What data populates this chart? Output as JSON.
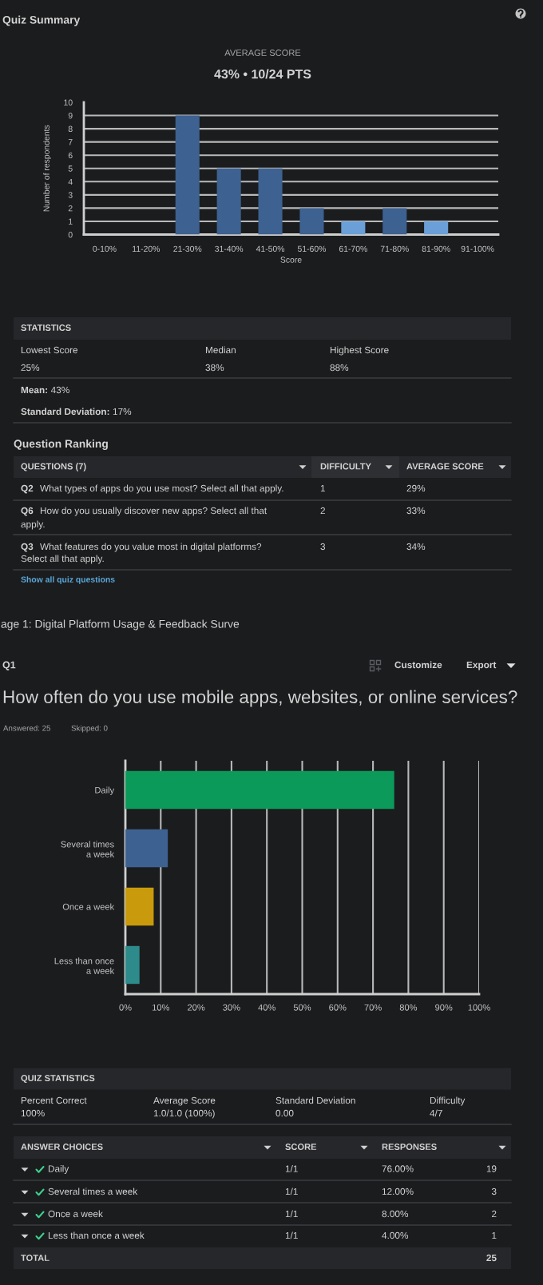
{
  "chart_data": [
    {
      "type": "bar",
      "title": "Quiz Summary",
      "subtitle": "AVERAGE SCORE",
      "annotations": [
        "43% • 10/24 PTS"
      ],
      "categories": [
        "0-10%",
        "11-20%",
        "21-30%",
        "31-40%",
        "41-50%",
        "51-60%",
        "61-70%",
        "71-80%",
        "81-90%",
        "91-100%"
      ],
      "values": [
        0,
        0,
        9,
        5,
        5,
        2,
        1,
        2,
        1,
        0
      ],
      "colors": [
        "#3d6190",
        "#3d6190",
        "#3d6190",
        "#3d6190",
        "#3d6190",
        "#3d6190",
        "#6a9fd8",
        "#3d6190",
        "#6a9fd8",
        "#3d6190"
      ],
      "xlabel": "Score",
      "ylabel": "Number of respondents",
      "ylim": [
        0,
        10
      ],
      "yticks": [
        0,
        1,
        2,
        3,
        4,
        5,
        6,
        7,
        8,
        9,
        10
      ],
      "grid": "y"
    },
    {
      "type": "other",
      "title": "STATISTICS",
      "annotations": [
        "Lowest Score",
        "Median",
        "Highest Score",
        "25%",
        "38%",
        "88%",
        "Mean:",
        "43%",
        "Standard Deviation:",
        "17%"
      ]
    },
    {
      "type": "other",
      "title": "Question Ranking",
      "annotations": [
        "QUESTIONS (7)",
        "DIFFICULTY",
        "AVERAGE SCORE",
        "Q2",
        "What types of apps do you use most? Select all that apply.",
        "1",
        "29%",
        "Q6",
        "How do you usually discover new apps? Select all that",
        "apply.",
        "2",
        "33%",
        "Q3",
        "What features do you value most in digital platforms?",
        "Select all that apply.",
        "3",
        "34%",
        "Show all quiz questions"
      ]
    },
    {
      "type": "other",
      "title": "age 1: Digital Platform Usage & Feedback Surve"
    },
    {
      "type": "bar",
      "orientation": "horizontal",
      "title": "How often do you use mobile apps, websites, or online services?",
      "annotations": [
        "Q1",
        "Customize",
        "Export",
        "Answered: 25",
        "Skipped: 0"
      ],
      "categories": [
        "Daily",
        "Several times\na week",
        "Once a week",
        "Less than once\na week"
      ],
      "values": [
        76,
        12,
        8,
        4
      ],
      "colors": [
        "#0b9a59",
        "#3d6190",
        "#c99a0b",
        "#2e8b8c"
      ],
      "xlim": [
        0,
        100
      ],
      "xticks": [
        {
          "value": 0,
          "label": "0%"
        },
        {
          "value": 10,
          "label": "10%"
        },
        {
          "value": 20,
          "label": "20%"
        },
        {
          "value": 30,
          "label": "30%"
        },
        {
          "value": 40,
          "label": "40%"
        },
        {
          "value": 50,
          "label": "50%"
        },
        {
          "value": 60,
          "label": "60%"
        },
        {
          "value": 70,
          "label": "70%"
        },
        {
          "value": 80,
          "label": "80%"
        },
        {
          "value": 90,
          "label": "90%"
        },
        {
          "value": 100,
          "label": "100%"
        }
      ],
      "grid": "x"
    },
    {
      "type": "other",
      "title": "QUIZ STATISTICS",
      "annotations": [
        "Percent Correct",
        "Average Score",
        "Standard Deviation",
        "Difficulty",
        "100%",
        "1.0/1.0 (100%)",
        "0.00",
        "4/7",
        "ANSWER CHOICES",
        "SCORE",
        "RESPONSES",
        "Daily",
        "1/1",
        "76.00%",
        "19",
        "Several times a week",
        "1/1",
        "12.00%",
        "3",
        "Once a week",
        "1/1",
        "8.00%",
        "2",
        "Less than once a week",
        "1/1",
        "4.00%",
        "1",
        "TOTAL",
        "25"
      ]
    }
  ]
}
